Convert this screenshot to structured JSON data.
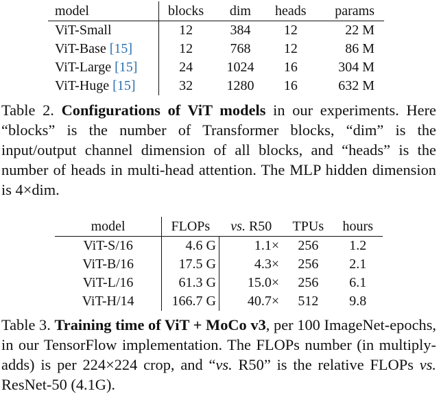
{
  "table2": {
    "headers": [
      "model",
      "blocks",
      "dim",
      "heads",
      "params"
    ],
    "rows": [
      {
        "model": "ViT-Small",
        "cite": "",
        "blocks": "12",
        "dim": "384",
        "heads": "12",
        "params": "22 M"
      },
      {
        "model": "ViT-Base",
        "cite": "[15]",
        "blocks": "12",
        "dim": "768",
        "heads": "12",
        "params": "86 M"
      },
      {
        "model": "ViT-Large",
        "cite": "[15]",
        "blocks": "24",
        "dim": "1024",
        "heads": "16",
        "params": "304 M"
      },
      {
        "model": "ViT-Huge",
        "cite": "[15]",
        "blocks": "32",
        "dim": "1280",
        "heads": "16",
        "params": "632 M"
      }
    ],
    "caption": {
      "label": "Table 2.",
      "title": "Configurations of ViT models",
      "text": "in our experiments. Here “blocks” is the number of Transformer blocks, “dim” is the input/output channel dimension of all blocks, and “heads” is the number of heads in multi-head attention. The MLP hidden dimension is 4×dim."
    }
  },
  "table3": {
    "headers": [
      "model",
      "FLOPs",
      "vs. R50",
      "TPUs",
      "hours"
    ],
    "rows": [
      {
        "model": "ViT-S/16",
        "flops": "4.6 G",
        "vs": "1.1×",
        "tpus": "256",
        "hours": "1.2"
      },
      {
        "model": "ViT-B/16",
        "flops": "17.5 G",
        "vs": "4.3×",
        "tpus": "256",
        "hours": "2.1"
      },
      {
        "model": "ViT-L/16",
        "flops": "61.3 G",
        "vs": "15.0×",
        "tpus": "256",
        "hours": "6.1"
      },
      {
        "model": "ViT-H/14",
        "flops": "166.7 G",
        "vs": "40.7×",
        "tpus": "512",
        "hours": "9.8"
      }
    ],
    "caption": {
      "label": "Table 3.",
      "title": "Training time of ViT + MoCo v3",
      "text_1": ", per 100 ImageNet-epochs, in our TensorFlow implementation. The FLOPs number (in multiply-adds) is per 224×224 crop, and “",
      "vs_1": "vs.",
      "text_2": " R50” is the relative FLOPs ",
      "vs_2": "vs.",
      "text_3": " ResNet-50 (4.1G)."
    }
  }
}
